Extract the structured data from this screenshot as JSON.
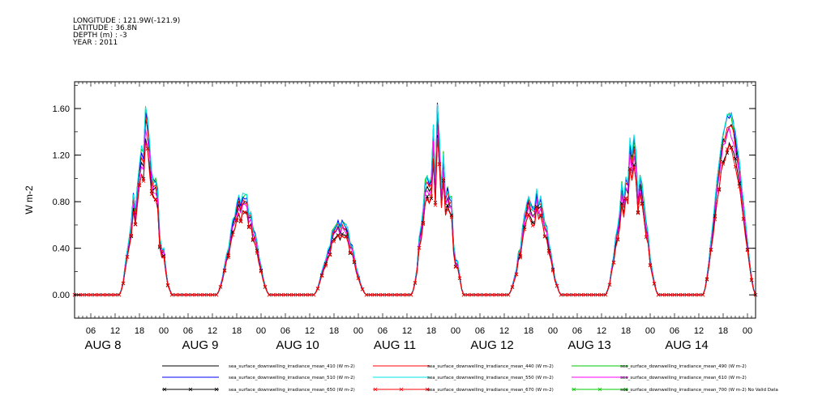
{
  "header": {
    "longitude": "LONGITUDE : 121.9W(-121.9)",
    "latitude": "LATITUDE : 36.8N",
    "depth": "DEPTH (m) : -3",
    "year": "YEAR : 2011"
  },
  "chart_data": {
    "type": "line",
    "ylabel": "W m-2",
    "ylim": [
      -0.2,
      1.83
    ],
    "xlim_hours": [
      2,
      170
    ],
    "yticks": [
      "0.00",
      "0.40",
      "0.80",
      "1.20",
      "1.60"
    ],
    "hour_ticks": [
      "06",
      "12",
      "18",
      "00"
    ],
    "day_labels": [
      "AUG  8",
      "AUG  9",
      "AUG 10",
      "AUG 11",
      "AUG 12",
      "AUG 13",
      "AUG 14"
    ],
    "days": [
      {
        "peak": 1.45,
        "noisy": 0.35,
        "shape": "spiky"
      },
      {
        "peak": 0.9,
        "noisy": 0.15,
        "shape": "broad"
      },
      {
        "peak": 0.7,
        "noisy": 0.2,
        "shape": "low"
      },
      {
        "peak": 1.7,
        "noisy": 0.45,
        "shape": "spiky"
      },
      {
        "peak": 0.95,
        "noisy": 0.25,
        "shape": "broad"
      },
      {
        "peak": 1.3,
        "noisy": 0.3,
        "shape": "spiky"
      },
      {
        "peak": 1.6,
        "noisy": 0.05,
        "shape": "smooth"
      }
    ],
    "series": [
      {
        "name": "sea_surface_downwelling_irradiance_mean_410 (W m-2)",
        "color": "#000000",
        "scale": 0.93,
        "marker": false
      },
      {
        "name": "sea_surface_downwelling_irradiance_mean_440 (W m-2)",
        "color": "#ff0000",
        "scale": 0.95,
        "marker": false
      },
      {
        "name": "sea_surface_downwelling_irradiance_mean_490 (W m-2)",
        "color": "#00c800",
        "scale": 1.0,
        "marker": false
      },
      {
        "name": "sea_surface_downwelling_irradiance_mean_510 (W m-2)",
        "color": "#0000ff",
        "scale": 0.99,
        "marker": false
      },
      {
        "name": "sea_surface_downwelling_irradiance_mean_550 (W m-2)",
        "color": "#00e5ee",
        "scale": 1.0,
        "marker": false
      },
      {
        "name": "sea_surface_downwelling_irradiance_mean_610 (W m-2)",
        "color": "#ff00ff",
        "scale": 0.9,
        "marker": false
      },
      {
        "name": "sea_surface_downwelling_irradiance_mean_650 (W m-2)",
        "color": "#000000",
        "scale": 0.83,
        "marker": true
      },
      {
        "name": "sea_surface_downwelling_irradiance_mean_670 (W m-2)",
        "color": "#ff0000",
        "scale": 0.82,
        "marker": true
      },
      {
        "name": "sea_surface_downwelling_irradiance_mean_700 (W m-2) No Valid Data",
        "color": "#00c800",
        "scale": 0,
        "marker": true
      }
    ]
  }
}
